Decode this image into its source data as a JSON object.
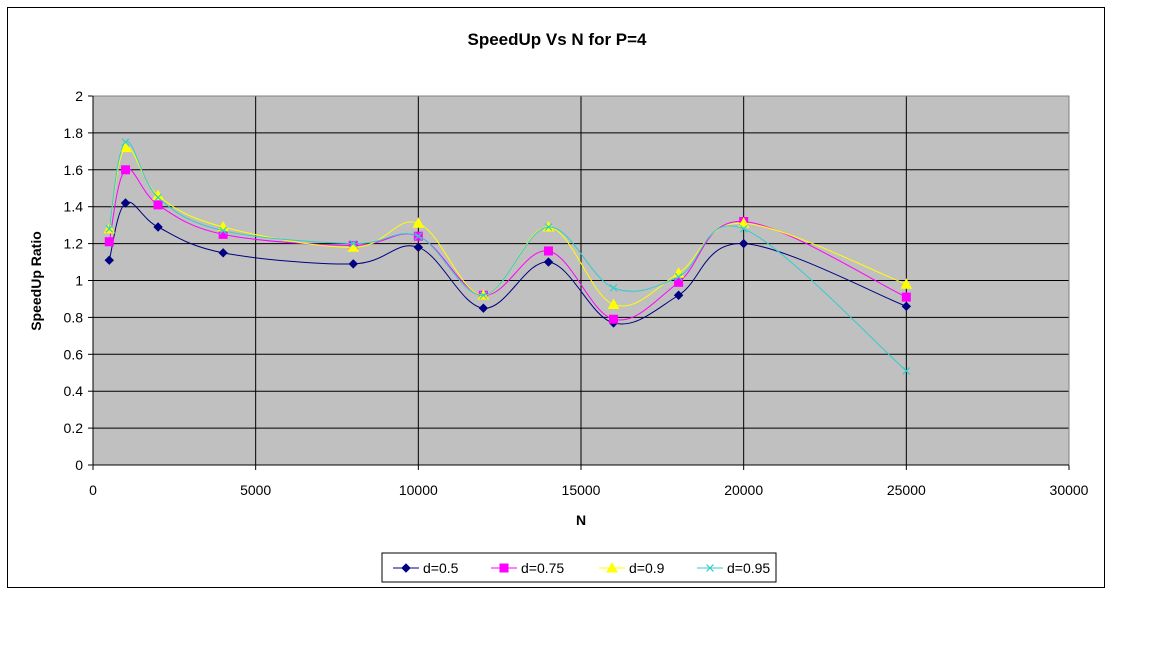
{
  "chart_data": {
    "type": "line",
    "title": "SpeedUp Vs N  for P=4",
    "xlabel": "N",
    "ylabel": "SpeedUp Ratio",
    "xlim": [
      0,
      30000
    ],
    "ylim": [
      0,
      2
    ],
    "x_ticks": [
      "0",
      "5000",
      "10000",
      "15000",
      "20000",
      "25000",
      "30000"
    ],
    "y_ticks": [
      "0",
      "0.2",
      "0.4",
      "0.6",
      "0.8",
      "1",
      "1.2",
      "1.4",
      "1.6",
      "1.8",
      "2"
    ],
    "grid": "major",
    "plot_background": "#c0c0c0",
    "legend_position": "bottom",
    "series": [
      {
        "name": "d=0.5",
        "color": "#000080",
        "marker": "diamond",
        "x": [
          500,
          1000,
          2000,
          4000,
          8000,
          10000,
          12000,
          14000,
          16000,
          18000,
          20000,
          25000
        ],
        "y": [
          1.11,
          1.42,
          1.29,
          1.15,
          1.09,
          1.18,
          0.85,
          1.1,
          0.77,
          0.92,
          1.2,
          0.86
        ]
      },
      {
        "name": "d=0.75",
        "color": "#ff00ff",
        "marker": "square",
        "x": [
          500,
          1000,
          2000,
          4000,
          8000,
          10000,
          12000,
          14000,
          16000,
          18000,
          20000,
          25000
        ],
        "y": [
          1.21,
          1.6,
          1.41,
          1.25,
          1.19,
          1.24,
          0.92,
          1.16,
          0.79,
          0.99,
          1.32,
          0.91
        ]
      },
      {
        "name": "d=0.9",
        "color": "#ffff00",
        "marker": "triangle",
        "x": [
          500,
          1000,
          2000,
          4000,
          8000,
          10000,
          12000,
          14000,
          16000,
          18000,
          20000,
          25000
        ],
        "y": [
          1.28,
          1.72,
          1.46,
          1.29,
          1.18,
          1.31,
          0.92,
          1.29,
          0.87,
          1.04,
          1.31,
          0.98
        ]
      },
      {
        "name": "d=0.95",
        "color": "#33cccc",
        "marker": "x",
        "x": [
          500,
          1000,
          2000,
          4000,
          8000,
          10000,
          12000,
          14000,
          16000,
          18000,
          20000,
          25000
        ],
        "y": [
          1.28,
          1.75,
          1.45,
          1.27,
          1.2,
          1.24,
          0.92,
          1.29,
          0.96,
          1.02,
          1.28,
          0.51
        ]
      }
    ]
  }
}
